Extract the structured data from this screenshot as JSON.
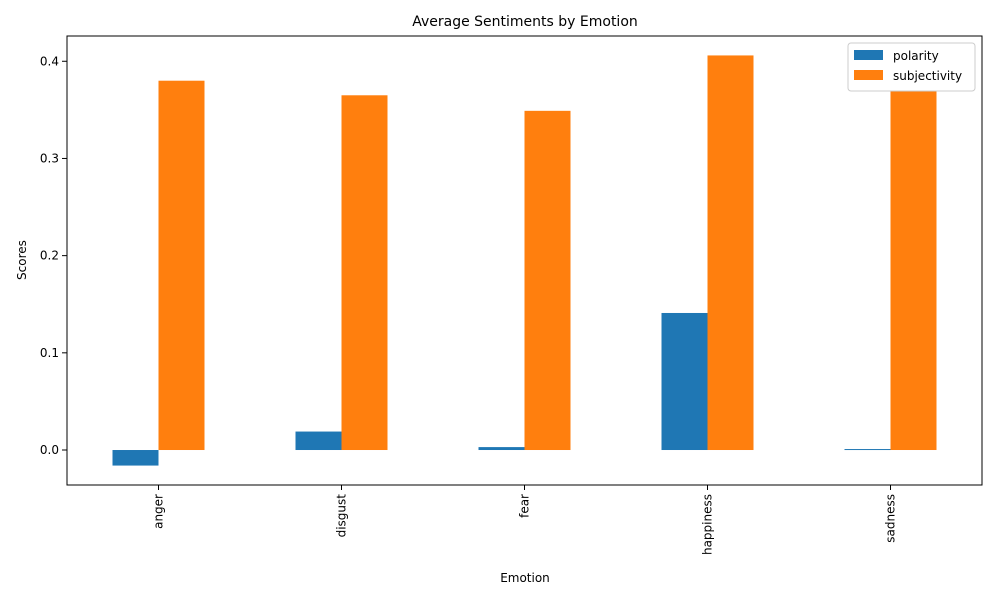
{
  "chart_data": {
    "type": "bar",
    "title": "Average Sentiments by Emotion",
    "xlabel": "Emotion",
    "ylabel": "Scores",
    "categories": [
      "anger",
      "disgust",
      "fear",
      "happiness",
      "sadness"
    ],
    "series": [
      {
        "name": "polarity",
        "color": "#1f77b4",
        "values": [
          -0.016,
          0.019,
          0.003,
          0.141,
          0.001
        ]
      },
      {
        "name": "subjectivity",
        "color": "#ff7f0e",
        "values": [
          0.38,
          0.365,
          0.349,
          0.406,
          0.37
        ]
      }
    ],
    "ylim": [
      -0.036,
      0.426
    ],
    "yticks": [
      0.0,
      0.1,
      0.2,
      0.3,
      0.4
    ],
    "ytick_labels": [
      "0.0",
      "0.1",
      "0.2",
      "0.3",
      "0.4"
    ],
    "xtick_rotation": "vertical",
    "grid": false,
    "legend_position": "top-right"
  }
}
